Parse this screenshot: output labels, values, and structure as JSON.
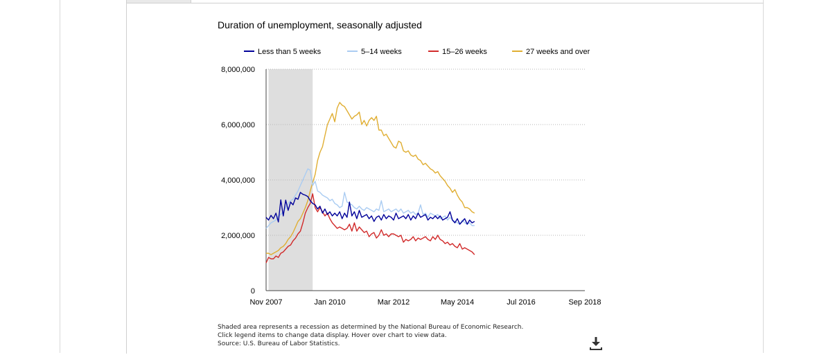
{
  "chart_data": {
    "type": "line",
    "title": "Duration of unemployment, seasonally adjusted",
    "xlabel": "",
    "ylabel": "",
    "x_ticks": [
      "Nov 2007",
      "Jan 2010",
      "Mar 2012",
      "May 2014",
      "Jul 2016",
      "Sep 2018"
    ],
    "y_ticks": [
      "0",
      "2,000,000",
      "4,000,000",
      "6,000,000",
      "8,000,000"
    ],
    "ylim": [
      0,
      8000000
    ],
    "x_start": "Nov 2007",
    "x_months_range": [
      0,
      130
    ],
    "recession": {
      "from_month": 1,
      "to_month": 19
    },
    "legend_position": "top",
    "gridlines": "dotted-horizontal",
    "series": [
      {
        "name": "Less than 5 weeks",
        "color": "#000099",
        "months": [
          0,
          1,
          2,
          3,
          4,
          5,
          6,
          7,
          8,
          9,
          10,
          11,
          12,
          13,
          14,
          15,
          16,
          17,
          18,
          19,
          20,
          21,
          22,
          23,
          24,
          25,
          26,
          27,
          28,
          29,
          30,
          31,
          32,
          33,
          34,
          35,
          36,
          37,
          38,
          39,
          40,
          41,
          42,
          43,
          44,
          45,
          46,
          47,
          48,
          49,
          50,
          51,
          52,
          53,
          54,
          55,
          56,
          57,
          58,
          59,
          60,
          61,
          62,
          63,
          64,
          65,
          66,
          67,
          68,
          69,
          70,
          71,
          72,
          73,
          74,
          75,
          76,
          77,
          78,
          79,
          80,
          81,
          82,
          83,
          84,
          85
        ],
        "values": [
          2650000,
          2550000,
          2720000,
          2600000,
          2800000,
          2480000,
          3280000,
          2700000,
          3270000,
          2900000,
          3200000,
          3100000,
          3350000,
          3300000,
          3550000,
          3480000,
          3450000,
          3400000,
          3250000,
          3150000,
          3100000,
          2950000,
          3050000,
          2800000,
          2950000,
          2750000,
          2850000,
          2700000,
          2800000,
          2700000,
          2850000,
          2600000,
          2800000,
          2650000,
          3200000,
          2700000,
          2850000,
          2600000,
          2900000,
          2650000,
          2700000,
          2750000,
          2600000,
          2700000,
          2500000,
          2650000,
          2700000,
          2550000,
          2750000,
          2600000,
          2700000,
          2650000,
          2550000,
          2800000,
          2600000,
          2650000,
          2700000,
          2600000,
          2750000,
          2550000,
          2700000,
          2600000,
          2800000,
          2650000,
          2700000,
          2750000,
          2550000,
          2650000,
          2600000,
          2700000,
          2600000,
          2700000,
          2550000,
          2600000,
          2650000,
          2850000,
          2550000,
          2450000,
          2600000,
          2400000,
          2500000,
          2600000,
          2400000,
          2550000,
          2450000,
          2500000
        ]
      },
      {
        "name": "5–14 weeks",
        "color": "#aaccf2",
        "months": [
          0,
          1,
          2,
          3,
          4,
          5,
          6,
          7,
          8,
          9,
          10,
          11,
          12,
          13,
          14,
          15,
          16,
          17,
          18,
          19,
          20,
          21,
          22,
          23,
          24,
          25,
          26,
          27,
          28,
          29,
          30,
          31,
          32,
          33,
          34,
          35,
          36,
          37,
          38,
          39,
          40,
          41,
          42,
          43,
          44,
          45,
          46,
          47,
          48,
          49,
          50,
          51,
          52,
          53,
          54,
          55,
          56,
          57,
          58,
          59,
          60,
          61,
          62,
          63,
          64,
          65,
          66,
          67,
          68,
          69,
          70,
          71,
          72,
          73,
          74,
          75,
          76,
          77,
          78,
          79,
          80,
          81,
          82,
          83,
          84,
          85
        ],
        "values": [
          2250000,
          2350000,
          2450000,
          2500000,
          2550000,
          2700000,
          2750000,
          2850000,
          3000000,
          3150000,
          3250000,
          3300000,
          3450000,
          3600000,
          3800000,
          4000000,
          4200000,
          4400000,
          4350000,
          3800000,
          3950000,
          3600000,
          3550000,
          3450000,
          3400000,
          3350000,
          3250000,
          3300000,
          3150000,
          3100000,
          3000000,
          3050000,
          3550000,
          3200000,
          3150000,
          3100000,
          3000000,
          2950000,
          3050000,
          2950000,
          2900000,
          3000000,
          2950000,
          2900000,
          2850000,
          2950000,
          2900000,
          3250000,
          2850000,
          2900000,
          2950000,
          2850000,
          2900000,
          2950000,
          2850000,
          2950000,
          2800000,
          2850000,
          2900000,
          2800000,
          2850000,
          2750000,
          2800000,
          3100000,
          2750000,
          2800000,
          2650000,
          2800000,
          2750000,
          2700000,
          2750000,
          2600000,
          2650000,
          2700000,
          2550000,
          2650000,
          2550000,
          2500000,
          2450000,
          2400000,
          2550000,
          2450000,
          2400000,
          2450000,
          2350000,
          2350000
        ]
      },
      {
        "name": "15–26 weeks",
        "color": "#d12a2a",
        "months": [
          0,
          1,
          2,
          3,
          4,
          5,
          6,
          7,
          8,
          9,
          10,
          11,
          12,
          13,
          14,
          15,
          16,
          17,
          18,
          19,
          20,
          21,
          22,
          23,
          24,
          25,
          26,
          27,
          28,
          29,
          30,
          31,
          32,
          33,
          34,
          35,
          36,
          37,
          38,
          39,
          40,
          41,
          42,
          43,
          44,
          45,
          46,
          47,
          48,
          49,
          50,
          51,
          52,
          53,
          54,
          55,
          56,
          57,
          58,
          59,
          60,
          61,
          62,
          63,
          64,
          65,
          66,
          67,
          68,
          69,
          70,
          71,
          72,
          73,
          74,
          75,
          76,
          77,
          78,
          79,
          80,
          81,
          82,
          83,
          84,
          85
        ],
        "values": [
          1000000,
          1200000,
          1150000,
          1150000,
          1250000,
          1200000,
          1350000,
          1400000,
          1500000,
          1600000,
          1650000,
          1800000,
          1900000,
          2050000,
          2150000,
          2450000,
          2800000,
          3000000,
          3150000,
          3500000,
          3000000,
          2850000,
          3000000,
          2850000,
          2700000,
          2800000,
          2600000,
          2450000,
          2350000,
          2250000,
          2300000,
          2250000,
          2200000,
          2250000,
          2400000,
          2150000,
          2450000,
          2150000,
          2300000,
          2200000,
          2100000,
          2150000,
          1950000,
          2050000,
          2100000,
          1900000,
          2000000,
          2200000,
          2000000,
          2050000,
          1950000,
          2050000,
          2050000,
          2000000,
          1950000,
          2000000,
          1750000,
          1850000,
          1800000,
          1850000,
          1950000,
          1800000,
          1900000,
          1850000,
          1900000,
          1950000,
          1850000,
          1800000,
          1950000,
          1850000,
          2000000,
          1850000,
          1800000,
          1700000,
          1750000,
          1650000,
          1700000,
          1600000,
          1550000,
          1700000,
          1500000,
          1550000,
          1500000,
          1450000,
          1400000,
          1300000
        ]
      },
      {
        "name": "27 weeks and over",
        "color": "#e0ae32",
        "months": [
          0,
          1,
          2,
          3,
          4,
          5,
          6,
          7,
          8,
          9,
          10,
          11,
          12,
          13,
          14,
          15,
          16,
          17,
          18,
          19,
          20,
          21,
          22,
          23,
          24,
          25,
          26,
          27,
          28,
          29,
          30,
          31,
          32,
          33,
          34,
          35,
          36,
          37,
          38,
          39,
          40,
          41,
          42,
          43,
          44,
          45,
          46,
          47,
          48,
          49,
          50,
          51,
          52,
          53,
          54,
          55,
          56,
          57,
          58,
          59,
          60,
          61,
          62,
          63,
          64,
          65,
          66,
          67,
          68,
          69,
          70,
          71,
          72,
          73,
          74,
          75,
          76,
          77,
          78,
          79,
          80,
          81,
          82,
          83,
          84,
          85
        ],
        "values": [
          1350000,
          1350000,
          1300000,
          1350000,
          1400000,
          1450000,
          1550000,
          1600000,
          1700000,
          1850000,
          1950000,
          2100000,
          2300000,
          2500000,
          2600000,
          2800000,
          3000000,
          3250000,
          3600000,
          3900000,
          4200000,
          4700000,
          5000000,
          5200000,
          5600000,
          6000000,
          6200000,
          6400000,
          6100000,
          6600000,
          6800000,
          6700000,
          6650000,
          6500000,
          6350000,
          6200000,
          6300000,
          6350000,
          6450000,
          6000000,
          6150000,
          5950000,
          6150000,
          6250000,
          6150000,
          6300000,
          5800000,
          5800000,
          5600000,
          5650000,
          5500000,
          5350000,
          5200000,
          5150000,
          5400000,
          5350000,
          5050000,
          5000000,
          5050000,
          4900000,
          4850000,
          4900000,
          4750000,
          4700000,
          4550000,
          4600000,
          4500000,
          4400000,
          4350000,
          4250000,
          4300000,
          4150000,
          4050000,
          3950000,
          3800000,
          3700000,
          3550000,
          3650000,
          3450000,
          3300000,
          3200000,
          3000000,
          3000000,
          2950000,
          2850000,
          2800000
        ]
      }
    ]
  },
  "footnotes": {
    "line1": "Shaded area represents a recession as determined by the National Bureau of Economic Research.",
    "line2": "Click legend items to change data display. Hover over chart to view data.",
    "line3": "Source: U.S. Bureau of Labor Statistics."
  },
  "download": {
    "icon": "download-icon"
  }
}
